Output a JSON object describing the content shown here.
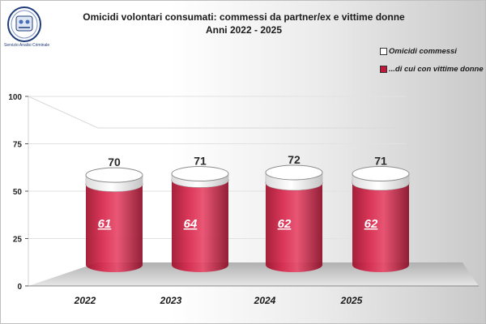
{
  "logo": {
    "caption": "Servizio Analisi Criminale",
    "icon": "police-crest-icon"
  },
  "chart_data": {
    "type": "bar",
    "title": "Omicidi volontari consumati: commessi da partner/ex e vittime donne",
    "subtitle": "Anni 2022 - 2025",
    "categories": [
      "2022",
      "2023",
      "2024",
      "2025"
    ],
    "series": [
      {
        "name": "Omicidi commessi",
        "values": [
          70,
          71,
          72,
          71
        ],
        "color": "#ffffff"
      },
      {
        "name": "...di cui con vittime donne",
        "values": [
          61,
          64,
          62,
          62
        ],
        "color": "#c0183a"
      }
    ],
    "yticks": [
      "0",
      "25",
      "50",
      "75",
      "100"
    ],
    "ylim": [
      0,
      100
    ],
    "grid": true,
    "legend": "top-right"
  }
}
